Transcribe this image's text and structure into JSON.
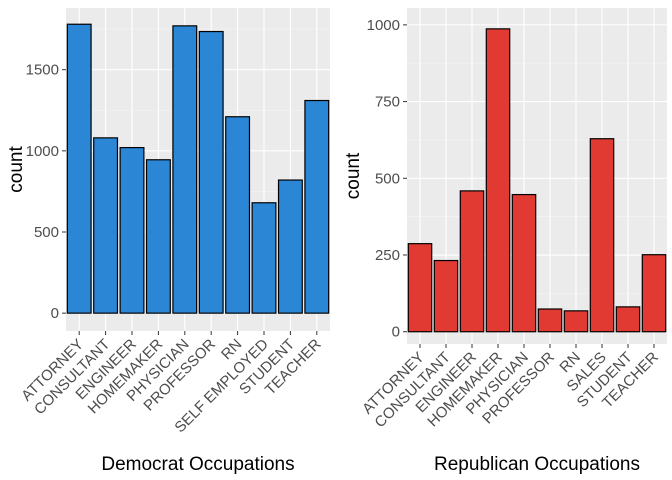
{
  "chart_data": [
    {
      "type": "bar",
      "categories": [
        "ATTORNEY",
        "CONSULTANT",
        "ENGINEER",
        "HOMEMAKER",
        "PHYSICIAN",
        "PROFESSOR",
        "RN",
        "SELF EMPLOYED",
        "STUDENT",
        "TEACHER"
      ],
      "values": [
        1780,
        1080,
        1020,
        945,
        1770,
        1735,
        1210,
        680,
        820,
        1310
      ],
      "xlabel": "Democrat Occupations",
      "ylabel": "count",
      "ylim": [
        -110,
        1880
      ],
      "yticks": [
        0,
        500,
        1000,
        1500
      ],
      "fill": "#2b86d6",
      "grid": true
    },
    {
      "type": "bar",
      "categories": [
        "ATTORNEY",
        "CONSULTANT",
        "ENGINEER",
        "HOMEMAKER",
        "PHYSICIAN",
        "PROFESSOR",
        "RN",
        "SALES",
        "STUDENT",
        "TEACHER"
      ],
      "values": [
        287,
        232,
        459,
        987,
        447,
        74,
        68,
        629,
        81,
        251
      ],
      "xlabel": "Republican Occupations",
      "ylabel": "count",
      "ylim": [
        -40,
        1055
      ],
      "yticks": [
        0,
        250,
        500,
        750,
        1000
      ],
      "fill": "#e03a33",
      "grid": true
    }
  ]
}
